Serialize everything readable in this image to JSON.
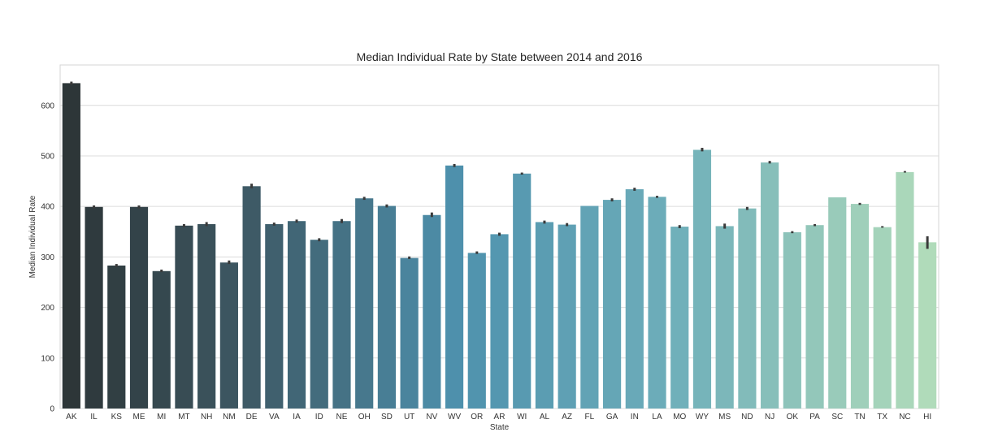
{
  "chart_data": {
    "type": "bar",
    "title": "Median Individual Rate by State between 2014 and 2016",
    "xlabel": "State",
    "ylabel": "Median Individual Rate",
    "ylim": [
      0,
      680
    ],
    "yticks": [
      0,
      100,
      200,
      300,
      400,
      500,
      600
    ],
    "grid": true,
    "legend": "none",
    "palette": "GnBu_d (dark slate to light mint)",
    "categories": [
      "AK",
      "IL",
      "KS",
      "ME",
      "MI",
      "MT",
      "NH",
      "NM",
      "DE",
      "VA",
      "IA",
      "ID",
      "NE",
      "OH",
      "SD",
      "UT",
      "NV",
      "WV",
      "OR",
      "AR",
      "WI",
      "AL",
      "AZ",
      "FL",
      "GA",
      "IN",
      "LA",
      "MO",
      "WY",
      "MS",
      "ND",
      "NJ",
      "OK",
      "PA",
      "SC",
      "TN",
      "TX",
      "NC",
      "HI"
    ],
    "values": [
      644,
      399,
      283,
      399,
      272,
      362,
      365,
      289,
      440,
      365,
      371,
      334,
      371,
      416,
      401,
      298,
      383,
      481,
      308,
      345,
      465,
      369,
      364,
      401,
      413,
      434,
      419,
      360,
      512,
      361,
      396,
      487,
      349,
      363,
      418,
      405,
      359,
      468,
      329
    ],
    "error_low": [
      641,
      396,
      280,
      396,
      270,
      359,
      361,
      286,
      436,
      362,
      368,
      331,
      367,
      413,
      398,
      296,
      379,
      478,
      306,
      342,
      463,
      366,
      361,
      401,
      410,
      431,
      417,
      357,
      509,
      356,
      393,
      485,
      347,
      361,
      418,
      403,
      358,
      467,
      316
    ],
    "error_high": [
      647,
      402,
      286,
      402,
      275,
      365,
      369,
      293,
      445,
      368,
      374,
      337,
      375,
      419,
      404,
      301,
      388,
      484,
      311,
      348,
      467,
      372,
      367,
      401,
      416,
      437,
      421,
      363,
      516,
      366,
      399,
      490,
      351,
      365,
      418,
      407,
      361,
      470,
      341
    ]
  }
}
